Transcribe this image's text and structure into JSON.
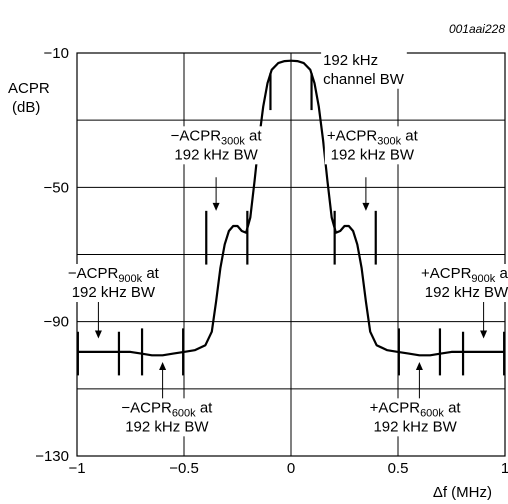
{
  "figure_id": "001aai228",
  "chart_data": {
    "type": "line",
    "ylabel_line1": "ACPR",
    "ylabel_line2": "(dB)",
    "xlabel": "Δf (MHz)",
    "xlim": [
      -1,
      1
    ],
    "ylim": [
      -130,
      -10
    ],
    "x_ticks": [
      {
        "value": -1,
        "label": "−1"
      },
      {
        "value": -0.5,
        "label": "−0.5"
      },
      {
        "value": 0,
        "label": "0"
      },
      {
        "value": 0.5,
        "label": "0.5"
      },
      {
        "value": 1,
        "label": "1"
      }
    ],
    "y_ticks": [
      {
        "value": -10,
        "label": "−10"
      },
      {
        "value": -50,
        "label": "−50"
      },
      {
        "value": -90,
        "label": "−90"
      },
      {
        "value": -130,
        "label": "−130"
      }
    ],
    "grid": true,
    "x_gridlines": [
      -0.5,
      0,
      0.5
    ],
    "y_gridlines": [
      -30,
      -50,
      -70,
      -90,
      -110
    ],
    "series": [
      {
        "points": [
          [
            -1.0,
            -99
          ],
          [
            -0.82,
            -99
          ],
          [
            -0.75,
            -99
          ],
          [
            -0.7,
            -99.5
          ],
          [
            -0.65,
            -100
          ],
          [
            -0.6,
            -100
          ],
          [
            -0.55,
            -99.5
          ],
          [
            -0.5,
            -99
          ],
          [
            -0.45,
            -98.5
          ],
          [
            -0.4,
            -97
          ],
          [
            -0.37,
            -93
          ],
          [
            -0.35,
            -84
          ],
          [
            -0.33,
            -74
          ],
          [
            -0.31,
            -67
          ],
          [
            -0.29,
            -63
          ],
          [
            -0.27,
            -61.5
          ],
          [
            -0.25,
            -61.5
          ],
          [
            -0.23,
            -63
          ],
          [
            -0.21,
            -63.5
          ],
          [
            -0.19,
            -59
          ],
          [
            -0.17,
            -48
          ],
          [
            -0.15,
            -36
          ],
          [
            -0.13,
            -26
          ],
          [
            -0.11,
            -19
          ],
          [
            -0.09,
            -15
          ],
          [
            -0.06,
            -13
          ],
          [
            -0.03,
            -12.4
          ],
          [
            0,
            -12.3
          ],
          [
            0.03,
            -12.4
          ],
          [
            0.06,
            -13
          ],
          [
            0.09,
            -15
          ],
          [
            0.11,
            -19
          ],
          [
            0.13,
            -26
          ],
          [
            0.15,
            -36
          ],
          [
            0.17,
            -48
          ],
          [
            0.19,
            -59
          ],
          [
            0.21,
            -63.5
          ],
          [
            0.23,
            -63
          ],
          [
            0.25,
            -61.5
          ],
          [
            0.27,
            -61.5
          ],
          [
            0.29,
            -63
          ],
          [
            0.31,
            -67
          ],
          [
            0.33,
            -74
          ],
          [
            0.35,
            -84
          ],
          [
            0.37,
            -93
          ],
          [
            0.4,
            -97
          ],
          [
            0.45,
            -98.5
          ],
          [
            0.5,
            -99
          ],
          [
            0.55,
            -99.5
          ],
          [
            0.6,
            -100
          ],
          [
            0.65,
            -100
          ],
          [
            0.7,
            -99.5
          ],
          [
            0.75,
            -99
          ],
          [
            0.82,
            -99
          ],
          [
            1.0,
            -99
          ]
        ]
      }
    ],
    "bandwidth_markers": [
      {
        "x": -0.096,
        "y_top": -16,
        "y_bottom": -27
      },
      {
        "x": 0.096,
        "y_top": -16,
        "y_bottom": -27
      },
      {
        "x": -0.396,
        "y_top": -57,
        "y_bottom": -73
      },
      {
        "x": -0.204,
        "y_top": -57,
        "y_bottom": -73
      },
      {
        "x": 0.204,
        "y_top": -57,
        "y_bottom": -73
      },
      {
        "x": 0.396,
        "y_top": -57,
        "y_bottom": -73
      },
      {
        "x": -0.996,
        "y_top": -93,
        "y_bottom": -106
      },
      {
        "x": -0.804,
        "y_top": -93,
        "y_bottom": -106
      },
      {
        "x": 0.804,
        "y_top": -93,
        "y_bottom": -106
      },
      {
        "x": 0.996,
        "y_top": -93,
        "y_bottom": -106
      },
      {
        "x": -0.696,
        "y_top": -92,
        "y_bottom": -106
      },
      {
        "x": -0.504,
        "y_top": -92,
        "y_bottom": -106
      },
      {
        "x": 0.504,
        "y_top": -92,
        "y_bottom": -106
      },
      {
        "x": 0.696,
        "y_top": -92,
        "y_bottom": -106
      }
    ],
    "arrows": [
      {
        "x": -0.35,
        "y_from": -47,
        "y_to": -57
      },
      {
        "x": 0.35,
        "y_from": -47,
        "y_to": -57
      },
      {
        "x": -0.9,
        "y_from": -84,
        "y_to": -95
      },
      {
        "x": 0.9,
        "y_from": -84,
        "y_to": -95
      },
      {
        "x": -0.6,
        "y_from": -115,
        "y_to": -102
      },
      {
        "x": 0.6,
        "y_from": -115,
        "y_to": -102
      }
    ],
    "annotations": [
      {
        "x": 0.15,
        "y": -13.5,
        "anchor": "start",
        "lines": [
          [
            {
              "t": "192 kHz"
            }
          ],
          [
            {
              "t": "channel BW"
            }
          ]
        ]
      },
      {
        "x": -0.35,
        "y": -36,
        "anchor": "middle",
        "lines": [
          [
            {
              "t": "−ACPR"
            },
            {
              "t": "300k",
              "sub": true
            },
            {
              "t": " at"
            }
          ],
          [
            {
              "t": "192 kHz BW"
            }
          ]
        ]
      },
      {
        "x": 0.38,
        "y": -36,
        "anchor": "middle",
        "lines": [
          [
            {
              "t": "+ACPR"
            },
            {
              "t": "300k",
              "sub": true
            },
            {
              "t": " at"
            }
          ],
          [
            {
              "t": "192 kHz BW"
            }
          ]
        ]
      },
      {
        "x": -0.83,
        "y": -77,
        "anchor": "middle",
        "lines": [
          [
            {
              "t": "−ACPR"
            },
            {
              "t": "900k",
              "sub": true
            },
            {
              "t": " at"
            }
          ],
          [
            {
              "t": "192 kHz BW"
            }
          ]
        ]
      },
      {
        "x": 0.82,
        "y": -77,
        "anchor": "middle",
        "lines": [
          [
            {
              "t": "+ACPR"
            },
            {
              "t": "900k",
              "sub": true
            },
            {
              "t": " at"
            }
          ],
          [
            {
              "t": "192 kHz BW"
            }
          ]
        ]
      },
      {
        "x": -0.58,
        "y": -117,
        "anchor": "middle",
        "lines": [
          [
            {
              "t": "−ACPR"
            },
            {
              "t": "600k",
              "sub": true
            },
            {
              "t": " at"
            }
          ],
          [
            {
              "t": "192 kHz BW"
            }
          ]
        ]
      },
      {
        "x": 0.58,
        "y": -117,
        "anchor": "middle",
        "lines": [
          [
            {
              "t": "+ACPR"
            },
            {
              "t": "600k",
              "sub": true
            },
            {
              "t": " at"
            }
          ],
          [
            {
              "t": "192 kHz BW"
            }
          ]
        ]
      }
    ]
  }
}
